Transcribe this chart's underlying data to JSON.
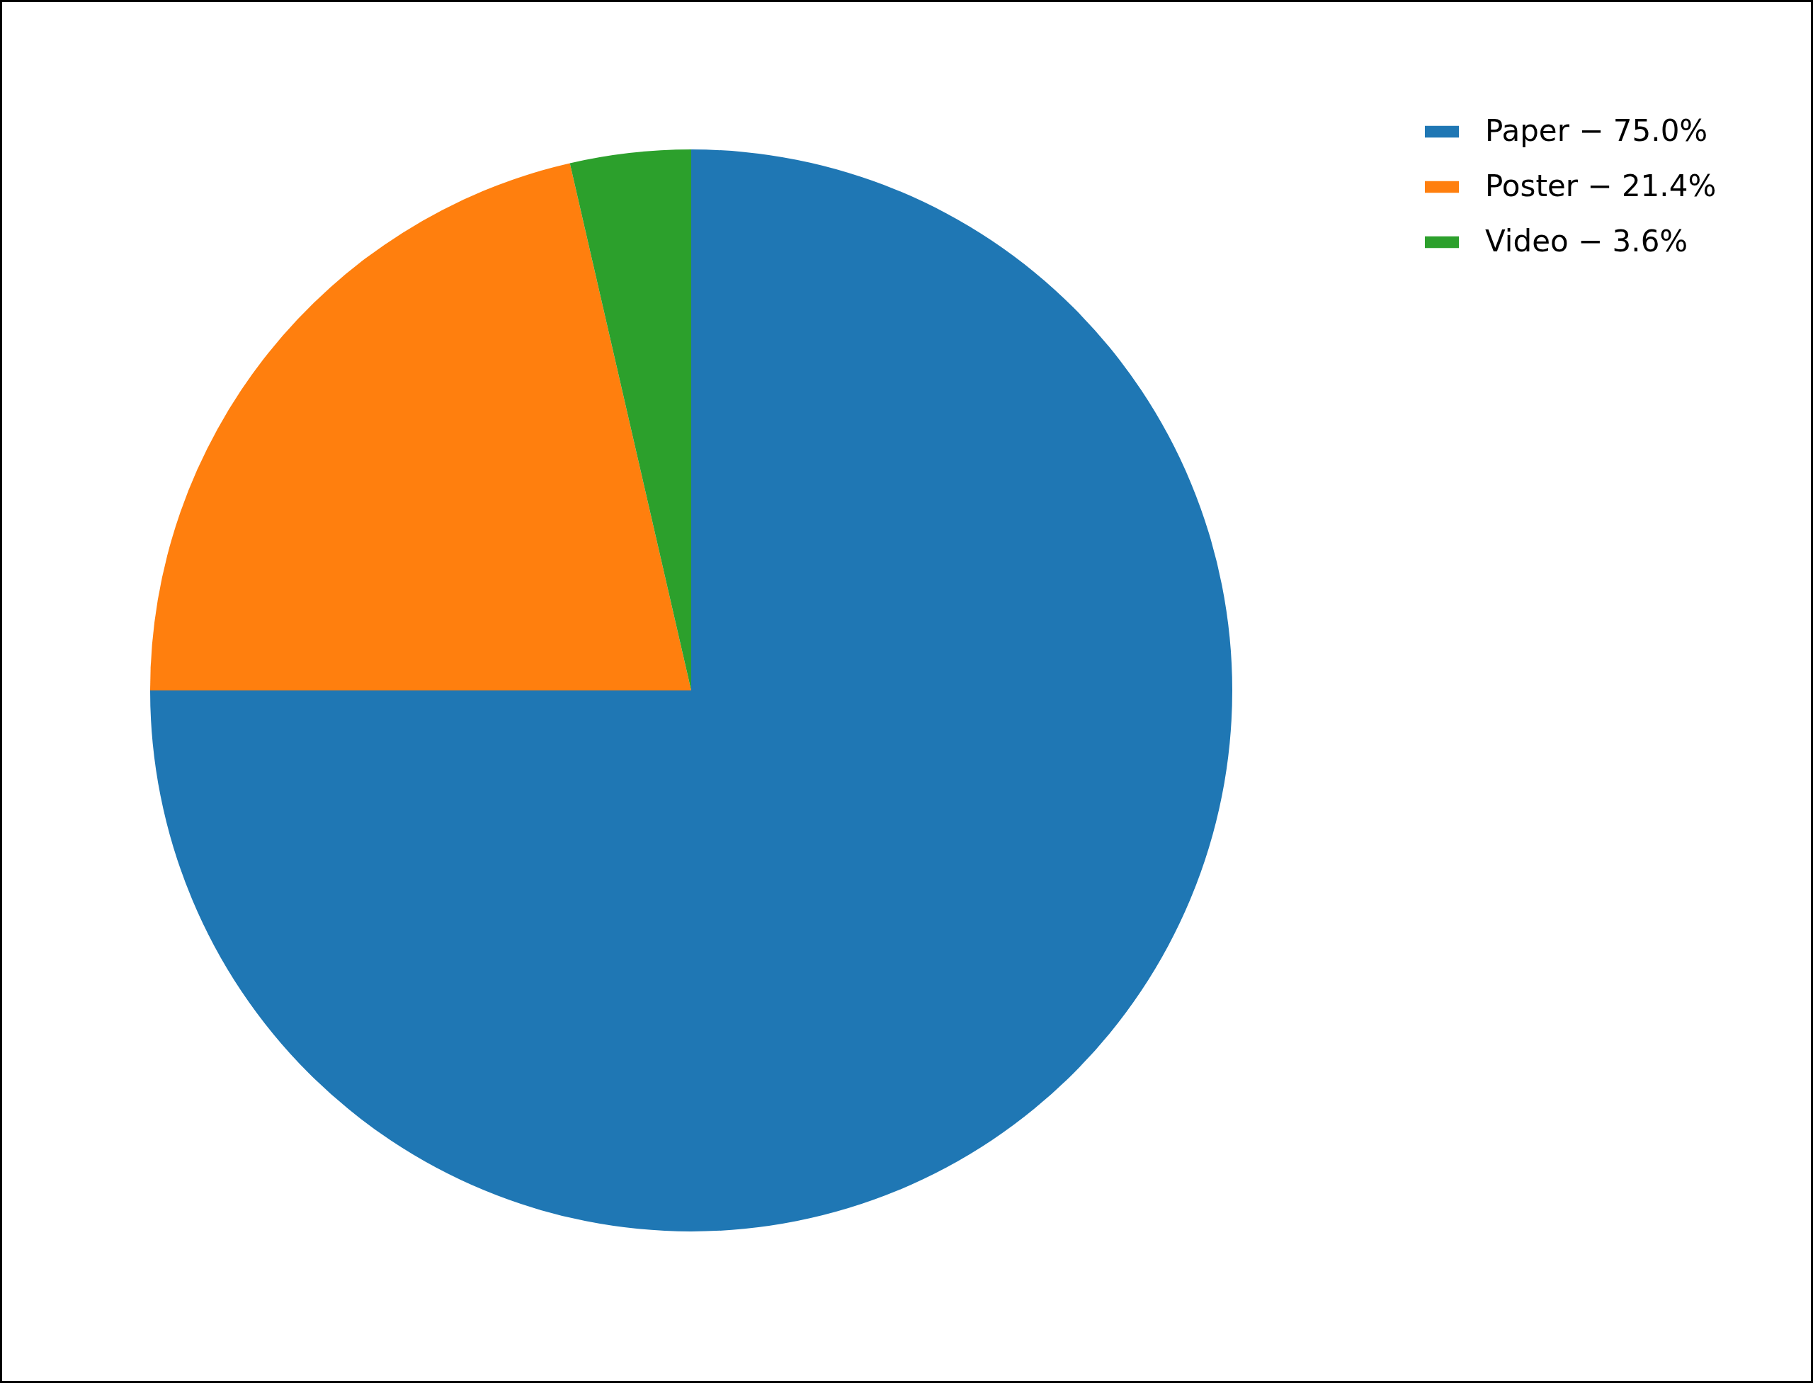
{
  "chart_data": {
    "type": "pie",
    "categories": [
      "Paper − 75.0%",
      "Poster − 21.4%",
      "Video − 3.6%"
    ],
    "values": [
      75.0,
      21.4,
      3.6
    ],
    "colors": [
      "#1f77b4",
      "#ff7f0e",
      "#2ca02c"
    ],
    "legend": "top right"
  }
}
